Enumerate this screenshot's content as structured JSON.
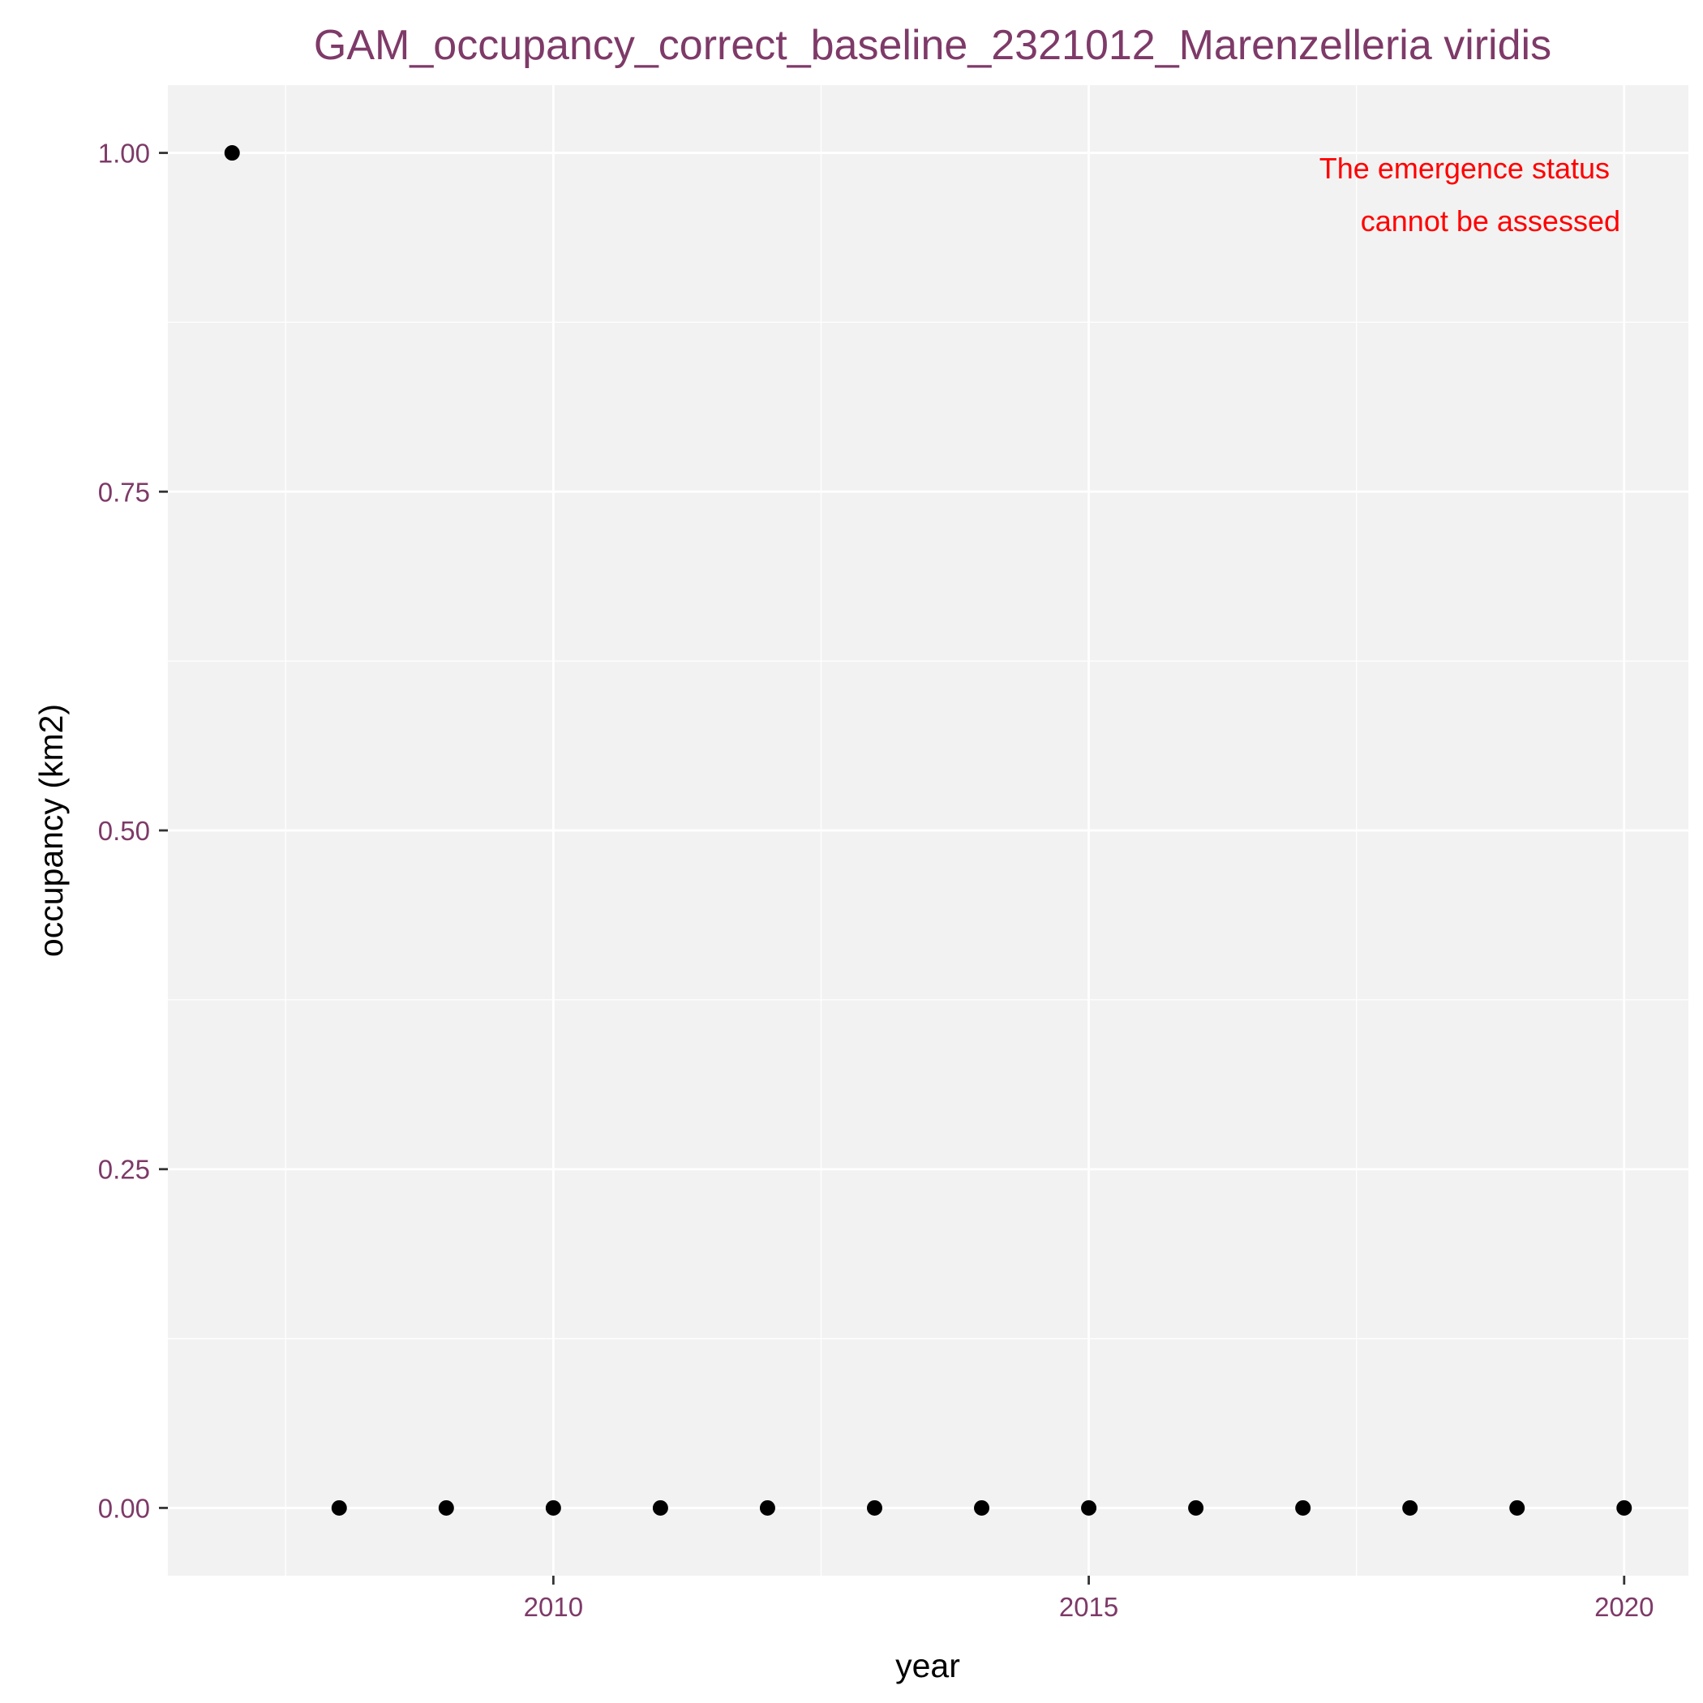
{
  "chart_data": {
    "type": "scatter",
    "title": "GAM_occupancy_correct_baseline_2321012_Marenzelleria viridis",
    "xlabel": "year",
    "ylabel": "occupancy (km2)",
    "xlim": [
      2006.4,
      2020.6
    ],
    "ylim": [
      -0.05,
      1.05
    ],
    "x_ticks": [
      2010,
      2015,
      2020
    ],
    "x_tick_labels": [
      "2010",
      "2015",
      "2020"
    ],
    "y_ticks": [
      0,
      0.25,
      0.5,
      0.75,
      1
    ],
    "y_tick_labels": [
      "0.00",
      "0.25",
      "0.50",
      "0.75",
      "1.00"
    ],
    "grid": true,
    "legend": "none",
    "annotation": {
      "lines": [
        "The emergence status",
        "cannot be assessed"
      ],
      "color": "#ff0000"
    },
    "colors": {
      "panel_background": "#f2f2f2",
      "grid": "#ffffff",
      "point": "#000000",
      "title": "#7e3a68",
      "tick_label": "#7e3a68"
    },
    "points": [
      {
        "x": 2007,
        "y": 1
      },
      {
        "x": 2008,
        "y": 0
      },
      {
        "x": 2009,
        "y": 0
      },
      {
        "x": 2010,
        "y": 0
      },
      {
        "x": 2011,
        "y": 0
      },
      {
        "x": 2012,
        "y": 0
      },
      {
        "x": 2013,
        "y": 0
      },
      {
        "x": 2014,
        "y": 0
      },
      {
        "x": 2015,
        "y": 0
      },
      {
        "x": 2016,
        "y": 0
      },
      {
        "x": 2017,
        "y": 0
      },
      {
        "x": 2018,
        "y": 0
      },
      {
        "x": 2019,
        "y": 0
      },
      {
        "x": 2020,
        "y": 0
      }
    ]
  }
}
